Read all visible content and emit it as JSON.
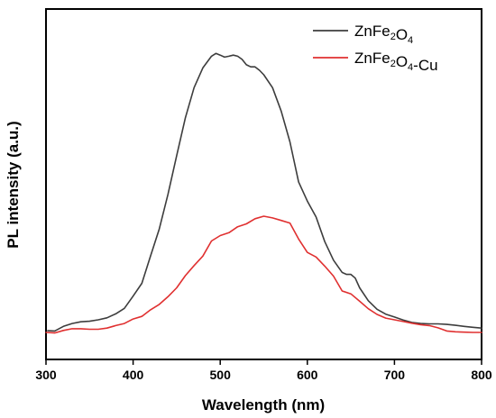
{
  "chart_data": {
    "type": "line",
    "xlabel": "Wavelength (nm)",
    "ylabel": "PL intensity (a.u.)",
    "xlim": [
      300,
      800
    ],
    "ylim": [
      0,
      100
    ],
    "xticks": [
      300,
      400,
      500,
      600,
      700,
      800
    ],
    "yticks_shown": false,
    "legend_position": "top-right",
    "series": [
      {
        "name": "ZnFe2O4",
        "legend_parts": [
          {
            "t": "ZnFe",
            "sub": false
          },
          {
            "t": "2",
            "sub": true
          },
          {
            "t": "O",
            "sub": false
          },
          {
            "t": "4",
            "sub": true
          }
        ],
        "color": "#3d3d3d",
        "x": [
          302,
          310,
          320,
          330,
          340,
          350,
          360,
          370,
          380,
          390,
          400,
          410,
          420,
          430,
          440,
          450,
          460,
          470,
          480,
          490,
          495,
          500,
          505,
          510,
          515,
          520,
          525,
          530,
          535,
          540,
          545,
          550,
          560,
          570,
          580,
          590,
          600,
          610,
          620,
          630,
          640,
          645,
          650,
          655,
          660,
          670,
          680,
          690,
          700,
          710,
          720,
          730,
          740,
          750,
          760,
          770,
          780,
          790,
          800
        ],
        "y": [
          2.5,
          2.4,
          4.0,
          5.0,
          5.6,
          5.8,
          6.3,
          7.0,
          8.4,
          10.3,
          14.6,
          19.1,
          28.6,
          38.1,
          50.2,
          63.8,
          77.1,
          87.6,
          94.5,
          98.6,
          99.6,
          99.0,
          98.3,
          98.6,
          99.0,
          98.6,
          97.5,
          95.6,
          94.9,
          94.9,
          93.7,
          92.1,
          87.6,
          79.4,
          68.6,
          54.6,
          47.9,
          42.3,
          33.7,
          27.2,
          22.9,
          22.2,
          22.2,
          20.9,
          17.5,
          13.0,
          10.0,
          8.3,
          7.3,
          6.2,
          5.4,
          5.0,
          4.9,
          4.9,
          4.7,
          4.4,
          4.0,
          3.7,
          3.4
        ]
      },
      {
        "name": "ZnFe2O4-Cu",
        "legend_parts": [
          {
            "t": "ZnFe",
            "sub": false
          },
          {
            "t": "2",
            "sub": true
          },
          {
            "t": "O",
            "sub": false
          },
          {
            "t": "4",
            "sub": true
          },
          {
            "t": "-Cu",
            "sub": false
          }
        ],
        "color": "#e03030",
        "x": [
          300,
          310,
          320,
          330,
          340,
          350,
          360,
          370,
          380,
          390,
          400,
          410,
          420,
          430,
          440,
          450,
          460,
          470,
          480,
          490,
          500,
          510,
          520,
          530,
          540,
          550,
          560,
          570,
          580,
          590,
          600,
          610,
          620,
          630,
          640,
          650,
          660,
          670,
          680,
          690,
          700,
          710,
          720,
          730,
          740,
          750,
          760,
          770,
          780,
          790,
          800
        ],
        "y": [
          1.9,
          1.7,
          2.6,
          3.2,
          3.2,
          3.0,
          3.0,
          3.4,
          4.3,
          5.0,
          6.6,
          7.5,
          9.8,
          11.7,
          14.4,
          17.5,
          21.8,
          25.3,
          28.6,
          33.9,
          35.8,
          36.8,
          38.9,
          39.9,
          41.7,
          42.6,
          42.0,
          41.1,
          40.2,
          34.6,
          29.9,
          28.3,
          25.1,
          21.6,
          16.4,
          15.4,
          12.8,
          10.2,
          8.2,
          6.9,
          6.3,
          5.7,
          5.1,
          4.6,
          4.3,
          3.5,
          2.4,
          2.1,
          2.0,
          1.9,
          1.9
        ]
      }
    ]
  }
}
